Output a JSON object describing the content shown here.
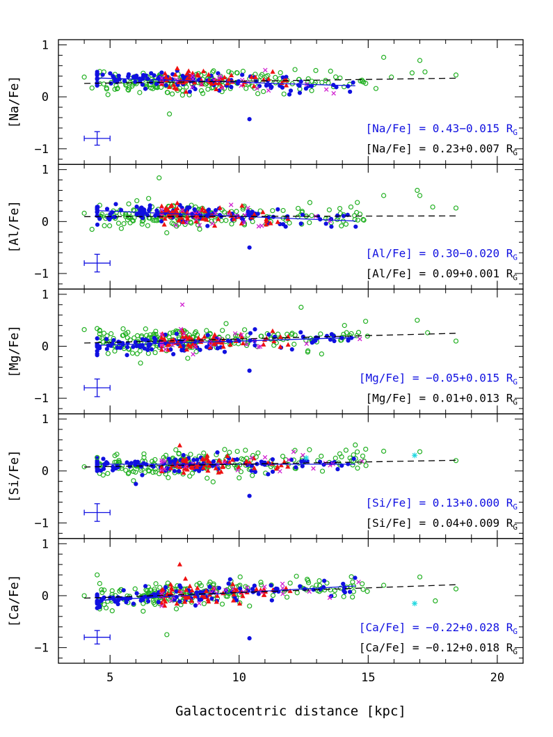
{
  "colors": {
    "blue": "#1010e0",
    "black": "#000000",
    "green": "#22b022",
    "red": "#ee1111",
    "magenta": "#d020d0",
    "cyan": "#20d8e0"
  },
  "chart_data": {
    "type": "scatter",
    "layout": "5 stacked panels sharing x axis",
    "xlabel": "Galactocentric distance [kpc]",
    "xlim": [
      3,
      21
    ],
    "xticks": [
      5,
      10,
      15,
      20
    ],
    "xticks_minor": [
      4,
      6,
      7,
      8,
      9,
      11,
      12,
      13,
      14,
      16,
      17,
      18,
      19
    ],
    "ylim": [
      -1.3,
      1.1
    ],
    "yticks": [
      -1,
      0,
      1
    ],
    "grid": false,
    "series_legend": [
      {
        "marker": "blue filled circle"
      },
      {
        "marker": "green open circle"
      },
      {
        "marker": "red filled triangle"
      },
      {
        "marker": "magenta cross"
      },
      {
        "marker": "cyan asterisk"
      }
    ],
    "panels": [
      {
        "ylabel": "[Na/Fe]",
        "fits": [
          {
            "label": "[Na/Fe] = 0.43−0.015 R",
            "subscript": "G",
            "color": "blue",
            "intercept": 0.43,
            "slope": -0.015,
            "x_range": [
              4.5,
              14.5
            ],
            "style": "solid"
          },
          {
            "label": "[Na/Fe] = 0.23+0.007 R",
            "subscript": "G",
            "color": "black",
            "intercept": 0.23,
            "slope": 0.007,
            "x_range": [
              4.0,
              18.5
            ],
            "style": "dashed"
          }
        ],
        "errorbar": {
          "x": 4.5,
          "y": -0.8,
          "xerr": 0.5,
          "yerr": 0.13
        },
        "highlights": [
          {
            "x": 10.4,
            "y": -0.43,
            "series": "blue"
          },
          {
            "x": 7.3,
            "y": -0.33,
            "series": "green"
          },
          {
            "x": 15.6,
            "y": 0.76,
            "series": "green"
          },
          {
            "x": 17.0,
            "y": 0.7,
            "series": "green"
          },
          {
            "x": 18.4,
            "y": 0.42,
            "series": "green"
          },
          {
            "x": 16.7,
            "y": 0.46,
            "series": "green"
          },
          {
            "x": 17.2,
            "y": 0.48,
            "series": "green"
          },
          {
            "x": 15.3,
            "y": 0.16,
            "series": "green"
          },
          {
            "x": 15.9,
            "y": 0.38,
            "series": "green"
          },
          {
            "x": 4.0,
            "y": 0.38,
            "series": "green"
          },
          {
            "x": 4.3,
            "y": 0.17,
            "series": "green"
          }
        ]
      },
      {
        "ylabel": "[Al/Fe]",
        "fits": [
          {
            "label": "[Al/Fe] = 0.30−0.020 R",
            "subscript": "G",
            "color": "blue",
            "intercept": 0.3,
            "slope": -0.02,
            "x_range": [
              4.5,
              14.5
            ],
            "style": "solid"
          },
          {
            "label": "[Al/Fe] = 0.09+0.001 R",
            "subscript": "G",
            "color": "black",
            "intercept": 0.09,
            "slope": 0.001,
            "x_range": [
              4.0,
              18.5
            ],
            "style": "dashed"
          }
        ],
        "errorbar": {
          "x": 4.5,
          "y": -0.8,
          "xerr": 0.5,
          "yerr": 0.17
        },
        "highlights": [
          {
            "x": 10.4,
            "y": -0.5,
            "series": "blue"
          },
          {
            "x": 6.9,
            "y": 0.84,
            "series": "green"
          },
          {
            "x": 16.9,
            "y": 0.6,
            "series": "green"
          },
          {
            "x": 17.0,
            "y": 0.5,
            "series": "green"
          },
          {
            "x": 15.6,
            "y": 0.5,
            "series": "green"
          },
          {
            "x": 17.5,
            "y": 0.28,
            "series": "green"
          },
          {
            "x": 18.4,
            "y": 0.26,
            "series": "green"
          },
          {
            "x": 4.3,
            "y": -0.15,
            "series": "green"
          },
          {
            "x": 4.0,
            "y": 0.16,
            "series": "green"
          }
        ]
      },
      {
        "ylabel": "[Mg/Fe]",
        "fits": [
          {
            "label": "[Mg/Fe] = −0.05+0.015 R",
            "subscript": "G",
            "color": "blue",
            "intercept": -0.05,
            "slope": 0.015,
            "x_range": [
              4.5,
              14.5
            ],
            "style": "solid"
          },
          {
            "label": "[Mg/Fe] = 0.01+0.013 R",
            "subscript": "G",
            "color": "black",
            "intercept": 0.01,
            "slope": 0.013,
            "x_range": [
              4.0,
              18.5
            ],
            "style": "dashed"
          }
        ],
        "errorbar": {
          "x": 4.5,
          "y": -0.8,
          "xerr": 0.5,
          "yerr": 0.17
        },
        "highlights": [
          {
            "x": 10.4,
            "y": -0.47,
            "series": "blue"
          },
          {
            "x": 7.8,
            "y": 0.8,
            "series": "magenta"
          },
          {
            "x": 12.4,
            "y": 0.75,
            "series": "green"
          },
          {
            "x": 16.9,
            "y": 0.5,
            "series": "green"
          },
          {
            "x": 14.9,
            "y": 0.48,
            "series": "green"
          },
          {
            "x": 17.3,
            "y": 0.26,
            "series": "green"
          },
          {
            "x": 18.4,
            "y": 0.1,
            "series": "green"
          },
          {
            "x": 4.0,
            "y": 0.32,
            "series": "green"
          },
          {
            "x": 4.5,
            "y": 0.34,
            "series": "green"
          }
        ]
      },
      {
        "ylabel": "[Si/Fe]",
        "fits": [
          {
            "label": "[Si/Fe] = 0.13+0.000 R",
            "subscript": "G",
            "color": "blue",
            "intercept": 0.13,
            "slope": 0.0,
            "x_range": [
              4.5,
              14.5
            ],
            "style": "solid"
          },
          {
            "label": "[Si/Fe] = 0.04+0.009 R",
            "subscript": "G",
            "color": "black",
            "intercept": 0.04,
            "slope": 0.009,
            "x_range": [
              4.0,
              18.5
            ],
            "style": "dashed"
          }
        ],
        "errorbar": {
          "x": 4.5,
          "y": -0.8,
          "xerr": 0.5,
          "yerr": 0.17
        },
        "highlights": [
          {
            "x": 10.4,
            "y": -0.48,
            "series": "blue"
          },
          {
            "x": 6.0,
            "y": -0.25,
            "series": "blue"
          },
          {
            "x": 14.5,
            "y": 0.5,
            "series": "green"
          },
          {
            "x": 15.6,
            "y": 0.38,
            "series": "green"
          },
          {
            "x": 17.0,
            "y": 0.37,
            "series": "green"
          },
          {
            "x": 16.8,
            "y": 0.3,
            "series": "cyan"
          },
          {
            "x": 12.6,
            "y": 0.25,
            "series": "cyan"
          },
          {
            "x": 18.4,
            "y": 0.2,
            "series": "green"
          },
          {
            "x": 4.0,
            "y": 0.08,
            "series": "green"
          },
          {
            "x": 4.5,
            "y": 0.26,
            "series": "green"
          },
          {
            "x": 7.7,
            "y": 0.49,
            "series": "red"
          }
        ]
      },
      {
        "ylabel": "[Ca/Fe]",
        "fits": [
          {
            "label": "[Ca/Fe] = −0.22+0.028 R",
            "subscript": "G",
            "color": "blue",
            "intercept": -0.22,
            "slope": 0.028,
            "x_range": [
              4.5,
              14.5
            ],
            "style": "solid"
          },
          {
            "label": "[Ca/Fe] = −0.12+0.018 R",
            "subscript": "G",
            "color": "black",
            "intercept": -0.12,
            "slope": 0.018,
            "x_range": [
              4.0,
              18.5
            ],
            "style": "dashed"
          }
        ],
        "errorbar": {
          "x": 4.5,
          "y": -0.8,
          "xerr": 0.5,
          "yerr": 0.13
        },
        "highlights": [
          {
            "x": 10.4,
            "y": -0.82,
            "series": "blue"
          },
          {
            "x": 7.2,
            "y": -0.75,
            "series": "green"
          },
          {
            "x": 4.5,
            "y": 0.4,
            "series": "green"
          },
          {
            "x": 7.7,
            "y": 0.6,
            "series": "red"
          },
          {
            "x": 16.8,
            "y": -0.15,
            "series": "cyan"
          },
          {
            "x": 17.0,
            "y": 0.36,
            "series": "green"
          },
          {
            "x": 17.6,
            "y": -0.1,
            "series": "green"
          },
          {
            "x": 18.4,
            "y": 0.13,
            "series": "green"
          },
          {
            "x": 15.6,
            "y": 0.2,
            "series": "green"
          },
          {
            "x": 4.0,
            "y": 0.0,
            "series": "green"
          }
        ]
      }
    ]
  }
}
